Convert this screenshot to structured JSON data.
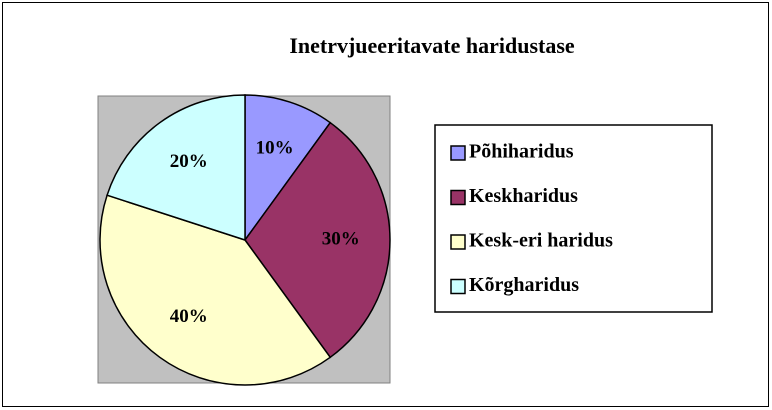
{
  "chart_data": {
    "type": "pie",
    "title": "Inetrvjueeritavate haridustase",
    "categories": [
      "Põhiharidus",
      "Keskharidus",
      "Kesk-eri haridus",
      "Kõrgharidus"
    ],
    "values": [
      10,
      30,
      40,
      20
    ],
    "value_labels": [
      "10%",
      "30%",
      "40%",
      "20%"
    ],
    "colors": [
      "#9999ff",
      "#993366",
      "#ffffcc",
      "#ccffff"
    ],
    "legend": "right"
  }
}
